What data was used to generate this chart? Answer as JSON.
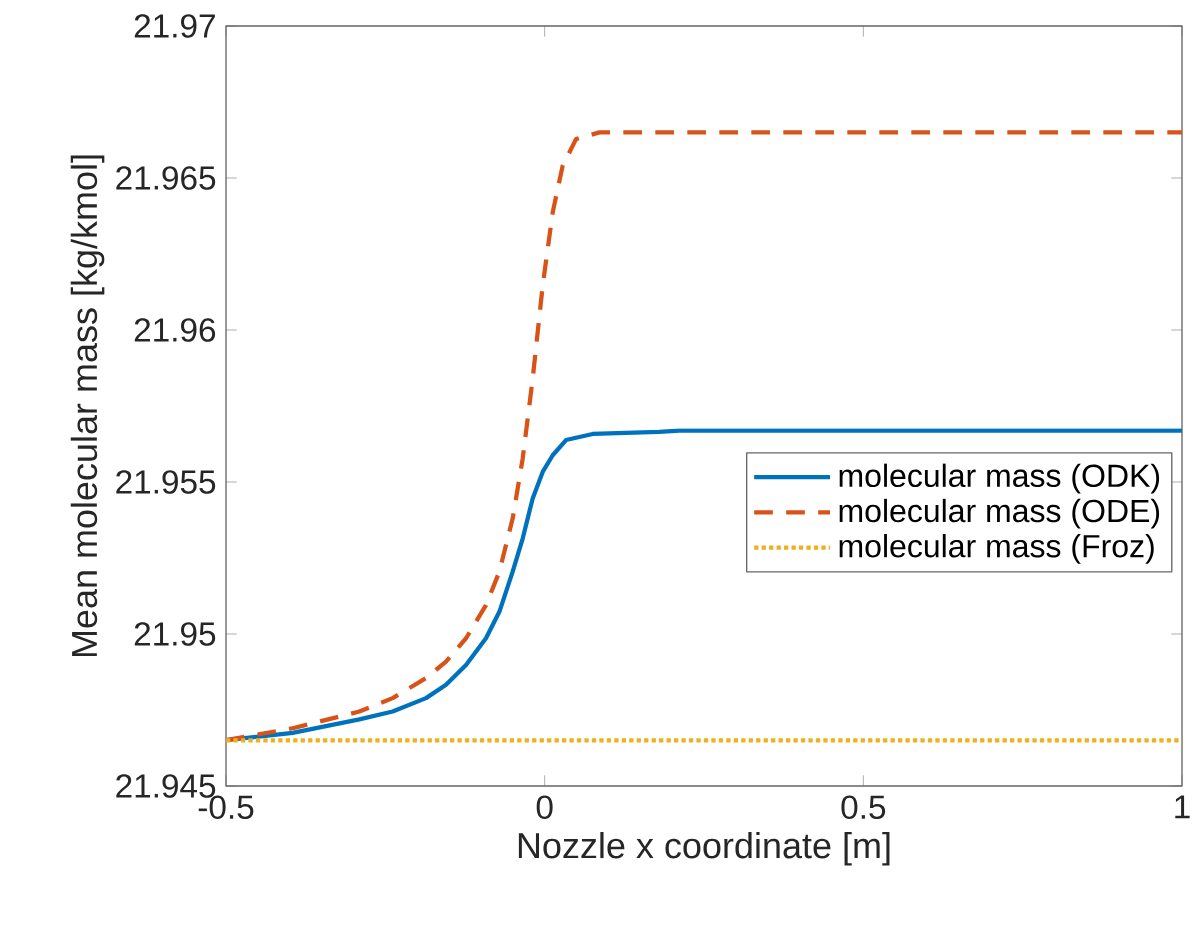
{
  "chart_data": {
    "type": "line",
    "xlabel": "Nozzle x coordinate [m]",
    "ylabel": "Mean molecular mass [kg/kmol]",
    "xlim": [
      -0.5,
      1
    ],
    "ylim": [
      21.945,
      21.97
    ],
    "xticks": [
      -0.5,
      0,
      0.5,
      1
    ],
    "yticks": [
      21.945,
      21.95,
      21.955,
      21.96,
      21.965,
      21.97
    ],
    "grid": false,
    "legend": "right",
    "marker": "none",
    "series": [
      {
        "name": "molecular mass (ODK)",
        "color": "#0072bd",
        "line_style": "solid",
        "x": [
          -0.5,
          -0.3954,
          -0.2908,
          -0.2385,
          -0.1862,
          -0.1548,
          -0.1234,
          -0.0921,
          -0.0711,
          -0.0502,
          -0.0345,
          -0.0188,
          -0.0031,
          0.0126,
          0.0335,
          0.0753,
          0.1799,
          0.2113,
          1
        ],
        "values": [
          21.94651,
          21.94675,
          21.94719,
          21.94745,
          21.94789,
          21.94833,
          21.94898,
          21.94986,
          21.95073,
          21.95205,
          21.95314,
          21.95446,
          21.95533,
          21.95588,
          21.95638,
          21.95658,
          21.95665,
          21.95669,
          21.95669
        ]
      },
      {
        "name": "molecular mass (ODE)",
        "color": "#d95319",
        "line_style": "dashed",
        "x": [
          -0.5,
          -0.3954,
          -0.2908,
          -0.2385,
          -0.1862,
          -0.1548,
          -0.1234,
          -0.0921,
          -0.0711,
          -0.0502,
          -0.0345,
          -0.0188,
          -0.0031,
          0.0126,
          0.0282,
          0.0492,
          0.0858,
          0.2113,
          1
        ],
        "values": [
          21.94651,
          21.9469,
          21.94745,
          21.94789,
          21.94855,
          21.94909,
          21.94986,
          21.95095,
          21.95205,
          21.9538,
          21.95577,
          21.9584,
          21.96146,
          21.96387,
          21.9654,
          21.96628,
          21.9665,
          21.9665,
          21.9665
        ]
      },
      {
        "name": "molecular mass (Froz)",
        "color": "#edb120",
        "line_style": "dotted",
        "x": [
          -0.5,
          1
        ],
        "values": [
          21.9465,
          21.9465
        ]
      }
    ]
  }
}
